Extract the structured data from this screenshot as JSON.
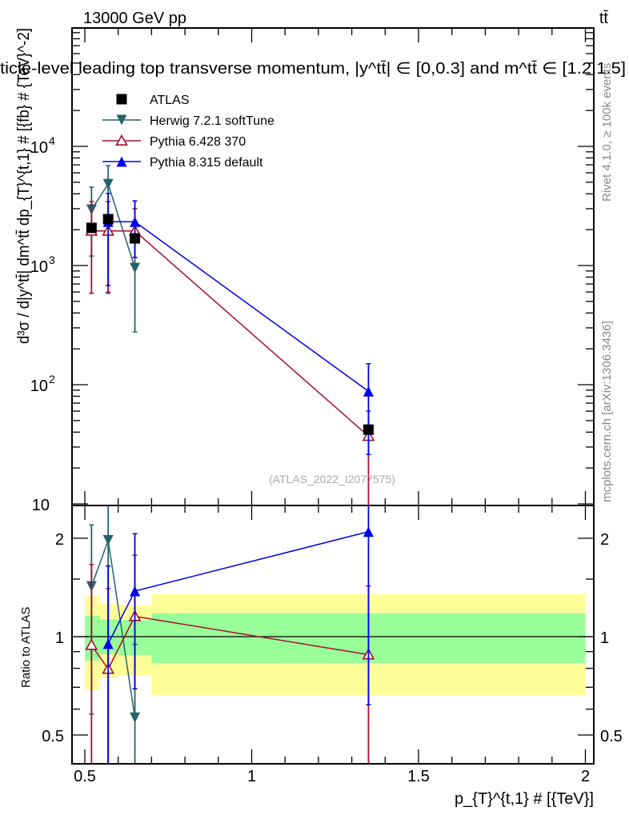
{
  "header": {
    "energy_label": "13000 GeV pp",
    "process_label": "tt̄",
    "title": "ticle-level leading top transverse momentum, |y^tt̄| ∈ [0,0.3] and m^tt̄ ∈ [1.2,1.5]",
    "side_label_top": "Rivet 4.1.0, ≥ 100k events",
    "side_label_bottom": "mcplots.cern.ch [arXiv:1306.3436]",
    "watermark": "(ATLAS_2022_I2077575)"
  },
  "chart_data": [
    {
      "type": "scatter",
      "panel": "main",
      "ylabel": "d³σ / d|y^tt̄| dm^tt̄ dp_{T}^{t,1} # [{fb} # {TeV}^-2]",
      "yscale": "log",
      "ylim": [
        10,
        100000
      ],
      "xlim": [
        0.46,
        2.03
      ],
      "ytick_labels": [
        {
          "v": 10000,
          "base": "10",
          "exp": "4"
        },
        {
          "v": 1000,
          "base": "10",
          "exp": "3"
        },
        {
          "v": 100,
          "base": "10",
          "exp": "2"
        },
        {
          "v": 10,
          "base": "10",
          "exp": ""
        }
      ],
      "legend_position": "top-left",
      "series": [
        {
          "name": "ATLAS",
          "color": "#000000",
          "marker": "square",
          "x": [
            0.52,
            0.57,
            0.65,
            1.35
          ],
          "y": [
            2070,
            2450,
            1690,
            42
          ],
          "yerr_lo": [
            null,
            null,
            null,
            null
          ],
          "yerr_hi": [
            null,
            null,
            null,
            null
          ]
        },
        {
          "name": "Herwig 7.2.1 softTune",
          "color": "#24636b",
          "marker": "triangle-down",
          "x": [
            0.52,
            0.57,
            0.65
          ],
          "y": [
            2950,
            4830,
            955
          ],
          "yerr_lo": [
            1200,
            600,
            277
          ],
          "yerr_hi": [
            4550,
            6900,
            1600
          ]
        },
        {
          "name": "Pythia 6.428 370",
          "color": "#a3102e",
          "marker": "triangle-up-open",
          "x": [
            0.52,
            0.57,
            0.65,
            1.35
          ],
          "y": [
            1950,
            1950,
            1950,
            37
          ],
          "yerr_lo": [
            585,
            585,
            1170,
            1
          ],
          "yerr_hi": [
            3440,
            3440,
            3000,
            60
          ]
        },
        {
          "name": "Pythia 8.315 default",
          "color": "#0000ee",
          "marker": "triangle-up",
          "x": [
            0.57,
            0.65,
            1.35
          ],
          "y": [
            2330,
            2330,
            88
          ],
          "yerr_lo": [
            680,
            1170,
            26
          ],
          "yerr_hi": [
            4030,
            3490,
            150
          ]
        }
      ]
    },
    {
      "type": "scatter",
      "panel": "ratio",
      "ylabel": "Ratio to ATLAS",
      "xlabel": "p_{T}^{t,1} # [{TeV}]",
      "yscale": "log",
      "ylim": [
        0.41,
        2.48
      ],
      "xlim": [
        0.46,
        2.03
      ],
      "ytick_labels": [
        {
          "v": 2,
          "label": "2"
        },
        {
          "v": 1,
          "label": "1"
        },
        {
          "v": 0.5,
          "label": "0.5"
        }
      ],
      "xtick_labels": [
        {
          "v": 0.5,
          "label": "0.5"
        },
        {
          "v": 1,
          "label": "1"
        },
        {
          "v": 1.5,
          "label": "1.5"
        },
        {
          "v": 2,
          "label": "2"
        }
      ],
      "bands": {
        "bin_edges": [
          0.5,
          0.545,
          0.6,
          0.7,
          2.0
        ],
        "total_color": "#ffff99",
        "stat_color": "#99ff99",
        "total_lo": [
          0.686,
          0.746,
          0.76,
          0.663
        ],
        "total_hi": [
          1.33,
          1.26,
          1.25,
          1.35
        ],
        "stat_lo": [
          0.845,
          0.884,
          0.878,
          0.83
        ],
        "stat_hi": [
          1.16,
          1.13,
          1.125,
          1.18
        ]
      }
    }
  ]
}
